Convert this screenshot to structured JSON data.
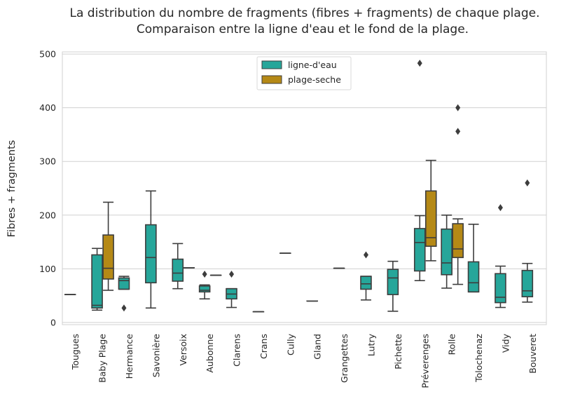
{
  "chart_data": {
    "type": "box",
    "title_line1": "La distribution du nombre de fragments (fibres + fragments) de chaque plage.",
    "title_line2": "Comparaison entre la ligne d'eau et le fond de la plage.",
    "xlabel": "",
    "ylabel": "Fibres + fragments",
    "ylim": [
      -4,
      504
    ],
    "yticks": [
      0,
      100,
      200,
      300,
      400,
      500
    ],
    "grid": "horizontal",
    "legend_position": "top-center",
    "categories": [
      "Tougues",
      "Baby Plage",
      "Hermance",
      "Savonière",
      "Versoix",
      "Aubonne",
      "Clarens",
      "Crans",
      "Cully",
      "Gland",
      "Grangettes",
      "Lutry",
      "Pichette",
      "Préverenges",
      "Rolle",
      "Tolochenaz",
      "Vidy",
      "Bouveret"
    ],
    "series": [
      {
        "name": "ligne-d'eau",
        "color": "#26a69a",
        "boxes": [
          {
            "category": "Tougues",
            "min": 52,
            "q1": 52,
            "median": 52,
            "q3": 52,
            "max": 52,
            "outliers": []
          },
          {
            "category": "Baby Plage",
            "min": 23,
            "q1": 27,
            "median": 32,
            "q3": 126,
            "max": 138,
            "outliers": []
          },
          {
            "category": "Hermance",
            "min": 62,
            "q1": 62,
            "median": 78,
            "q3": 83,
            "max": 86,
            "outliers": [
              27
            ]
          },
          {
            "category": "Savonière",
            "min": 27,
            "q1": 74,
            "median": 121,
            "q3": 182,
            "max": 245,
            "outliers": []
          },
          {
            "category": "Versoix",
            "min": 63,
            "q1": 77,
            "median": 92,
            "q3": 118,
            "max": 147,
            "outliers": []
          },
          {
            "category": "Aubonne",
            "min": 44,
            "q1": 57,
            "median": 60,
            "q3": 68,
            "max": 70,
            "outliers": [
              90
            ]
          },
          {
            "category": "Clarens",
            "min": 28,
            "q1": 44,
            "median": 53,
            "q3": 63,
            "max": 63,
            "outliers": [
              90
            ]
          },
          {
            "category": "Crans",
            "min": 20,
            "q1": 20,
            "median": 20,
            "q3": 20,
            "max": 20,
            "outliers": []
          },
          {
            "category": "Cully",
            "min": 129,
            "q1": 129,
            "median": 129,
            "q3": 129,
            "max": 129,
            "outliers": []
          },
          {
            "category": "Gland",
            "min": 40,
            "q1": 40,
            "median": 40,
            "q3": 40,
            "max": 40,
            "outliers": []
          },
          {
            "category": "Grangettes",
            "min": 101,
            "q1": 101,
            "median": 101,
            "q3": 101,
            "max": 101,
            "outliers": []
          },
          {
            "category": "Lutry",
            "min": 42,
            "q1": 62,
            "median": 72,
            "q3": 86,
            "max": 86,
            "outliers": [
              126
            ]
          },
          {
            "category": "Pichette",
            "min": 21,
            "q1": 52,
            "median": 83,
            "q3": 99,
            "max": 114,
            "outliers": []
          },
          {
            "category": "Préverenges",
            "min": 78,
            "q1": 96,
            "median": 149,
            "q3": 175,
            "max": 199,
            "outliers": [
              483
            ]
          },
          {
            "category": "Rolle",
            "min": 64,
            "q1": 89,
            "median": 111,
            "q3": 174,
            "max": 200,
            "outliers": []
          },
          {
            "category": "Tolochenaz",
            "min": 57,
            "q1": 57,
            "median": 74,
            "q3": 113,
            "max": 183,
            "outliers": []
          },
          {
            "category": "Vidy",
            "min": 28,
            "q1": 37,
            "median": 47,
            "q3": 91,
            "max": 105,
            "outliers": [
              214
            ]
          },
          {
            "category": "Bouveret",
            "min": 38,
            "q1": 48,
            "median": 59,
            "q3": 97,
            "max": 110,
            "outliers": [
              260
            ]
          }
        ]
      },
      {
        "name": "plage-seche",
        "color": "#b58916",
        "boxes": [
          {
            "category": "Baby Plage",
            "min": 60,
            "q1": 81,
            "median": 101,
            "q3": 163,
            "max": 224,
            "outliers": []
          },
          {
            "category": "Versoix",
            "min": 102,
            "q1": 102,
            "median": 102,
            "q3": 102,
            "max": 102,
            "outliers": []
          },
          {
            "category": "Aubonne",
            "min": 88,
            "q1": 88,
            "median": 88,
            "q3": 88,
            "max": 88,
            "outliers": []
          },
          {
            "category": "Préverenges",
            "min": 115,
            "q1": 142,
            "median": 158,
            "q3": 245,
            "max": 302,
            "outliers": []
          },
          {
            "category": "Rolle",
            "min": 71,
            "q1": 121,
            "median": 137,
            "q3": 184,
            "max": 193,
            "outliers": [
              356,
              400
            ]
          }
        ]
      }
    ]
  }
}
